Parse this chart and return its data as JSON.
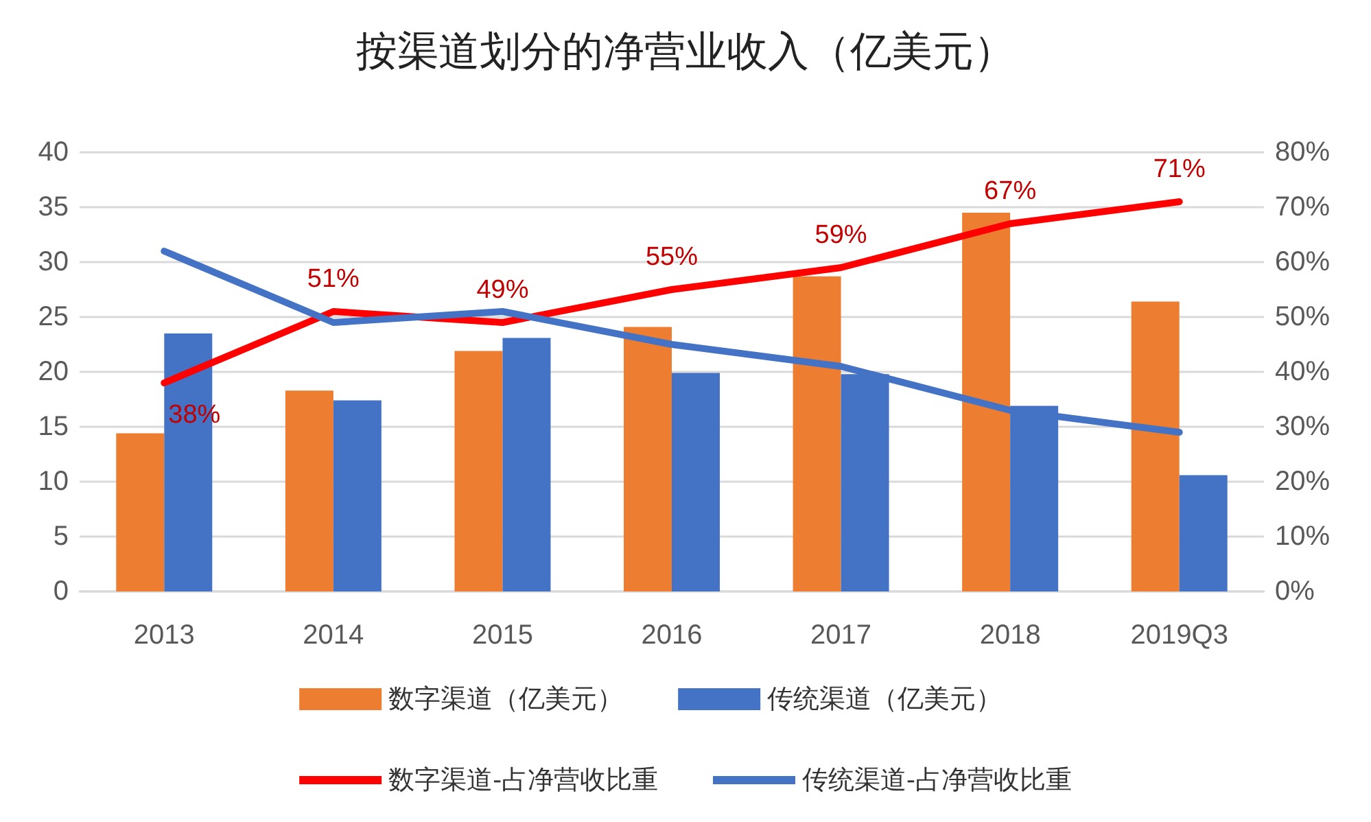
{
  "chart_data": {
    "type": "bar",
    "title": "按渠道划分的净营业收入（亿美元）",
    "categories": [
      "2013",
      "2014",
      "2015",
      "2016",
      "2017",
      "2018",
      "2019Q3"
    ],
    "series": [
      {
        "name": "数字渠道（亿美元）",
        "color": "#ed7d31",
        "values": [
          14.4,
          18.3,
          21.9,
          24.1,
          28.7,
          34.5,
          26.4
        ]
      },
      {
        "name": "传统渠道（亿美元）",
        "color": "#4472c4",
        "values": [
          23.5,
          17.4,
          23.1,
          19.9,
          19.8,
          16.9,
          10.6
        ]
      },
      {
        "name": "数字渠道-占净营收比重",
        "type": "line",
        "axis": "y2",
        "color": "#ff0000",
        "values": [
          38,
          51,
          49,
          55,
          59,
          67,
          71
        ],
        "value_labels": [
          "38%",
          "51%",
          "49%",
          "55%",
          "59%",
          "67%",
          "71%"
        ]
      },
      {
        "name": "传统渠道-占净营收比重",
        "type": "line",
        "axis": "y2",
        "color": "#4472c4",
        "values": [
          62,
          49,
          51,
          45,
          41,
          33,
          29
        ]
      }
    ],
    "ylim": [
      0,
      40
    ],
    "yticks": [
      0,
      5,
      10,
      15,
      20,
      25,
      30,
      35,
      40
    ],
    "y2lim": [
      0,
      80
    ],
    "y2ticks": [
      {
        "value": 0,
        "label": "0%"
      },
      {
        "value": 10,
        "label": "10%"
      },
      {
        "value": 20,
        "label": "20%"
      },
      {
        "value": 30,
        "label": "30%"
      },
      {
        "value": 40,
        "label": "40%"
      },
      {
        "value": 50,
        "label": "50%"
      },
      {
        "value": 60,
        "label": "60%"
      },
      {
        "value": 70,
        "label": "70%"
      },
      {
        "value": 80,
        "label": "80%"
      }
    ],
    "grid": "y",
    "legend": "bottom",
    "marker": "none"
  }
}
